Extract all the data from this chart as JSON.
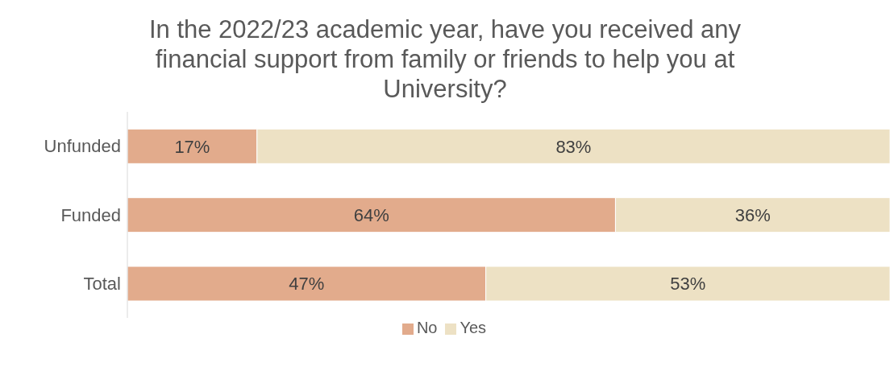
{
  "chart_data": {
    "type": "bar",
    "orientation": "horizontal",
    "stacked": true,
    "title": "In the 2022/23 academic year, have you received any financial support from family or friends to help you at University?",
    "categories": [
      "Unfunded",
      "Funded",
      "Total"
    ],
    "series": [
      {
        "name": "No",
        "color": "#e2ab8c",
        "values": [
          17,
          64,
          47
        ],
        "value_labels": [
          "17%",
          "64%",
          "47%"
        ]
      },
      {
        "name": "Yes",
        "color": "#ede1c4",
        "values": [
          83,
          36,
          53
        ],
        "value_labels": [
          "83%",
          "36%",
          "53%"
        ]
      }
    ],
    "xlim": [
      0,
      100
    ],
    "grid": false,
    "legend": "bottom",
    "tick_labels": "y"
  }
}
